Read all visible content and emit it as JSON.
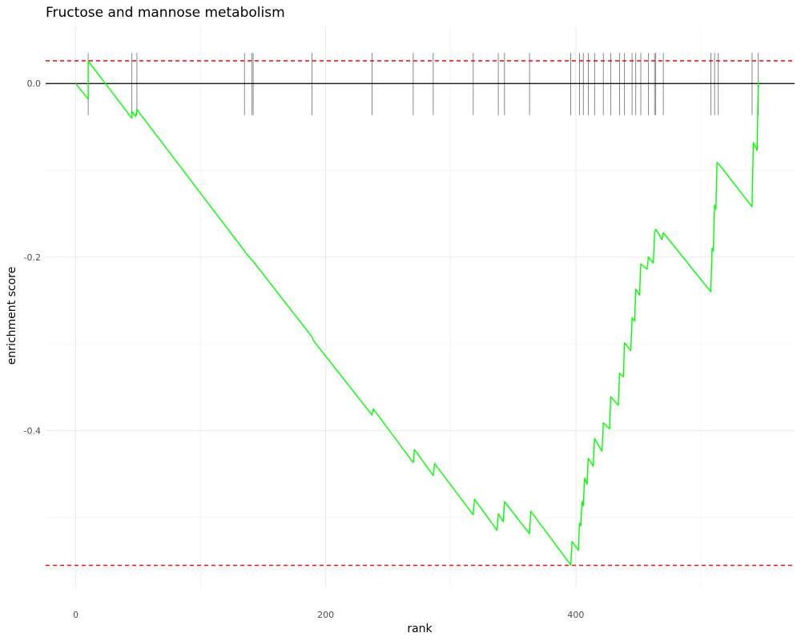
{
  "chart_data": {
    "type": "line",
    "title": "Fructose and mannose metabolism",
    "xlabel": "rank",
    "ylabel": "enrichment score",
    "xlim": [
      -24,
      575
    ],
    "ylim": [
      -0.5807,
      0.0658
    ],
    "x_ticks": [
      0,
      200,
      400
    ],
    "x_tick_labels": [
      "0",
      "200",
      "400"
    ],
    "y_ticks": [
      0.0,
      -0.2,
      -0.4
    ],
    "y_tick_labels": [
      "0.0",
      "-0.2",
      "-0.4"
    ],
    "grid": true,
    "legend": "none",
    "colors": {
      "line": "#00ff00",
      "threshold": "#ff0000",
      "zero": "#000000",
      "hit": "#555555",
      "grid": "#ebebeb"
    },
    "zero_line": 0.0,
    "thresholds": [
      0.0262,
      -0.5554
    ],
    "hit_ticks_range": [
      -0.0364,
      0.0352
    ],
    "hits": [
      10,
      45,
      49,
      135,
      141,
      142,
      189,
      237,
      270,
      286,
      318,
      338,
      343,
      363,
      396,
      403,
      406,
      410,
      415,
      422,
      428,
      435,
      439,
      445,
      448,
      452,
      458,
      463,
      464,
      470,
      508,
      511,
      514,
      541,
      546
    ],
    "series": [
      {
        "x": [
          0,
          10,
          10,
          45,
          45,
          48,
          49,
          135,
          137,
          140,
          142,
          189,
          190,
          237,
          238,
          270,
          271,
          286,
          287,
          318,
          319,
          337,
          338,
          342,
          343,
          363,
          364,
          396,
          397,
          402,
          403,
          404,
          405,
          406,
          407,
          409,
          410,
          414,
          415,
          421,
          422,
          427,
          428,
          434,
          435,
          438,
          439,
          444,
          445,
          447,
          448,
          451,
          452,
          457,
          458,
          462,
          463,
          464,
          469,
          470,
          508,
          509,
          510,
          511,
          512,
          513,
          514,
          541,
          542,
          545,
          546
        ],
        "y": [
          0.0,
          -0.018,
          0.026,
          -0.04,
          -0.032,
          -0.038,
          -0.03,
          -0.193,
          -0.197,
          -0.202,
          -0.205,
          -0.292,
          -0.296,
          -0.382,
          -0.375,
          -0.437,
          -0.422,
          -0.452,
          -0.438,
          -0.497,
          -0.479,
          -0.515,
          -0.496,
          -0.505,
          -0.482,
          -0.519,
          -0.493,
          -0.555,
          -0.528,
          -0.538,
          -0.507,
          -0.51,
          -0.482,
          -0.487,
          -0.455,
          -0.462,
          -0.432,
          -0.441,
          -0.409,
          -0.424,
          -0.391,
          -0.398,
          -0.361,
          -0.371,
          -0.334,
          -0.338,
          -0.299,
          -0.308,
          -0.27,
          -0.274,
          -0.237,
          -0.244,
          -0.208,
          -0.214,
          -0.2,
          -0.207,
          -0.172,
          -0.168,
          -0.18,
          -0.172,
          -0.24,
          -0.19,
          -0.193,
          -0.14,
          -0.145,
          -0.091,
          -0.092,
          -0.142,
          -0.068,
          -0.077,
          0.002
        ]
      }
    ]
  }
}
